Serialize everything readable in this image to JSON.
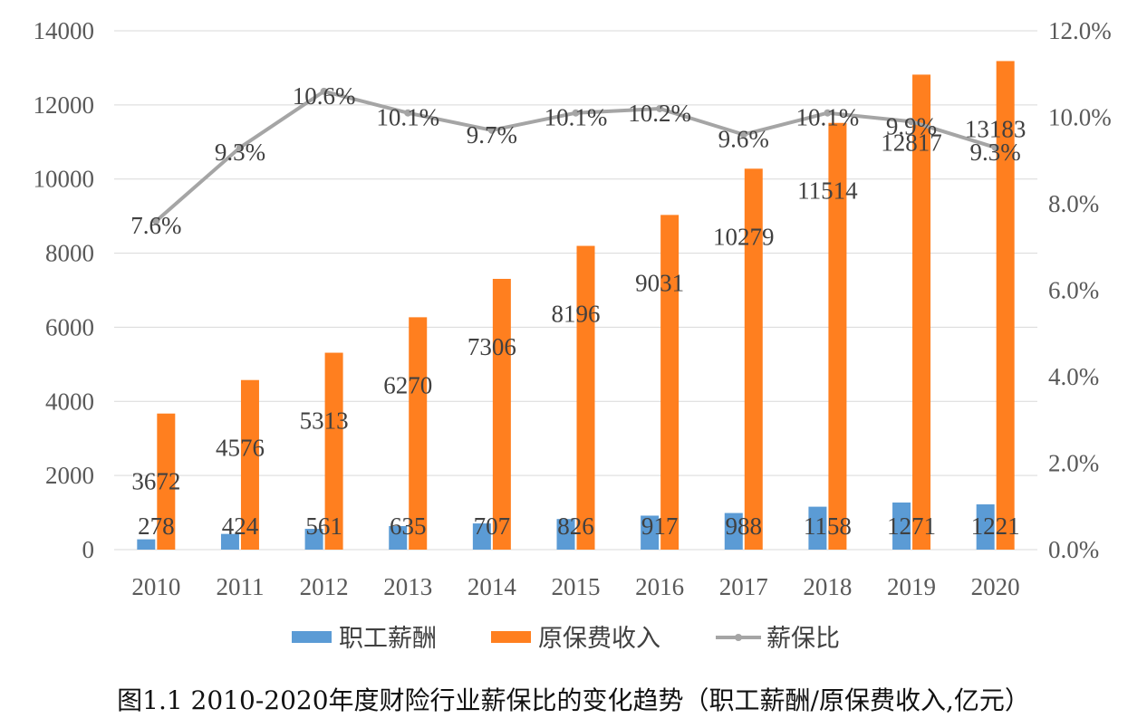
{
  "caption": "图1.1 2010-2020年度财险行业薪保比的变化趋势（职工薪酬/原保费收入,亿元）",
  "colors": {
    "salary": "#5b9bd5",
    "premium": "#ff7f1f",
    "ratio": "#a5a5a5",
    "grid": "#d9d9d9"
  },
  "chart_data": {
    "type": "bar",
    "categories": [
      "2010",
      "2011",
      "2012",
      "2013",
      "2014",
      "2015",
      "2016",
      "2017",
      "2018",
      "2019",
      "2020"
    ],
    "series": [
      {
        "name": "职工薪酬",
        "type": "bar",
        "axis": "left",
        "values": [
          278,
          424,
          561,
          635,
          707,
          826,
          917,
          988,
          1158,
          1271,
          1221
        ],
        "labels": [
          "278",
          "424",
          "561",
          "635",
          "707",
          "826",
          "917",
          "988",
          "1158",
          "1271",
          "1221"
        ]
      },
      {
        "name": "原保费收入",
        "type": "bar",
        "axis": "left",
        "values": [
          3672,
          4576,
          5313,
          6270,
          7306,
          8196,
          9031,
          10279,
          11514,
          12817,
          13183
        ],
        "labels": [
          "3672",
          "4576",
          "5313",
          "6270",
          "7306",
          "8196",
          "9031",
          "10279",
          "11514",
          "12817",
          "13183"
        ]
      },
      {
        "name": "薪保比",
        "type": "line",
        "axis": "right",
        "values": [
          7.6,
          9.3,
          10.6,
          10.1,
          9.7,
          10.1,
          10.2,
          9.6,
          10.1,
          9.9,
          9.3
        ],
        "labels": [
          "7.6%",
          "9.3%",
          "10.6%",
          "10.1%",
          "9.7%",
          "10.1%",
          "10.2%",
          "9.6%",
          "10.1%",
          "9.9%",
          "9.3%"
        ]
      }
    ],
    "y_left": {
      "ylim": [
        0,
        14000
      ],
      "ticks": [
        "0",
        "2000",
        "4000",
        "6000",
        "8000",
        "10000",
        "12000",
        "14000"
      ]
    },
    "y_right": {
      "ylim": [
        0,
        12
      ],
      "ticks": [
        "0.0%",
        "2.0%",
        "4.0%",
        "6.0%",
        "8.0%",
        "10.0%",
        "12.0%"
      ]
    },
    "grid": true,
    "legend": "bottom"
  }
}
